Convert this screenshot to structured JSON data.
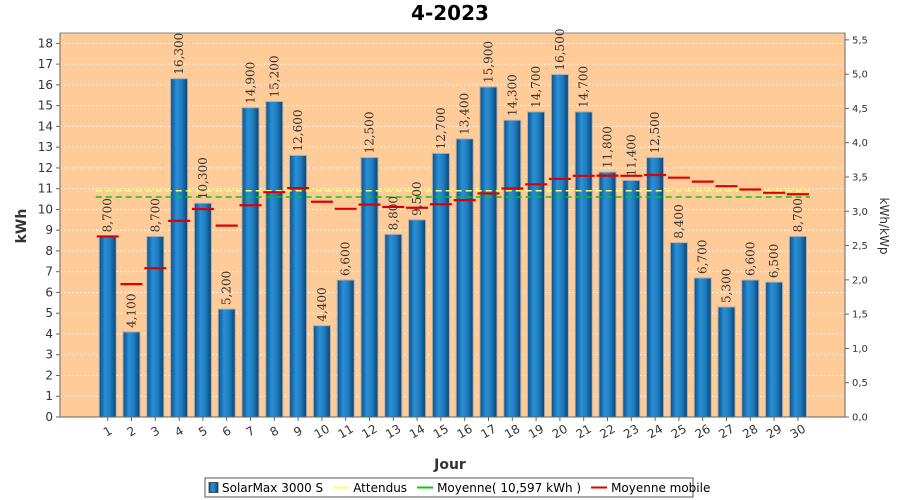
{
  "chart_data": {
    "type": "bar",
    "title": "4-2023",
    "xlabel": "Jour",
    "ylabel": "kWh",
    "y2label": "kWh/kWp",
    "ylim": [
      0,
      18.5
    ],
    "y2lim": [
      0,
      5.6
    ],
    "categories": [
      "1",
      "2",
      "3",
      "4",
      "5",
      "6",
      "7",
      "8",
      "9",
      "10",
      "11",
      "12",
      "13",
      "14",
      "15",
      "16",
      "17",
      "18",
      "19",
      "20",
      "21",
      "22",
      "23",
      "24",
      "25",
      "26",
      "27",
      "28",
      "29",
      "30"
    ],
    "series": [
      {
        "name": "SolarMax 3000 S",
        "kind": "bar",
        "color": "#1a6fb0",
        "values": [
          8.7,
          4.1,
          8.7,
          16.3,
          10.3,
          5.2,
          14.9,
          15.2,
          12.6,
          4.4,
          6.6,
          12.5,
          8.8,
          9.5,
          12.7,
          13.4,
          15.9,
          14.3,
          14.7,
          16.5,
          14.7,
          11.8,
          11.4,
          12.5,
          8.4,
          6.7,
          5.3,
          6.6,
          6.5,
          8.7
        ],
        "labels": [
          "8,700",
          "4,100",
          "8,700",
          "16,300",
          "10,300",
          "5,200",
          "14,900",
          "15,200",
          "12,600",
          "4,400",
          "6,600",
          "12,500",
          "8,800",
          "9,500",
          "12,700",
          "13,400",
          "15,900",
          "14,300",
          "14,700",
          "16,500",
          "14,700",
          "11,800",
          "11,400",
          "12,500",
          "8,400",
          "6,700",
          "5,300",
          "6,600",
          "6,500",
          "8,700"
        ]
      },
      {
        "name": "Attendus",
        "kind": "dashed-line",
        "color": "#ffff66",
        "value": 10.9
      },
      {
        "name": "Moyenne( 10,597 kWh )",
        "kind": "dashed-line",
        "color": "#00cc00",
        "value": 10.597
      },
      {
        "name": "Moyenne mobile",
        "kind": "segments",
        "color": "#dd0000",
        "values": [
          8.7,
          6.4,
          7.17,
          9.45,
          10.02,
          9.22,
          10.2,
          10.83,
          11.03,
          10.37,
          10.03,
          10.23,
          10.12,
          10.08,
          10.25,
          10.45,
          10.77,
          11.01,
          11.21,
          11.47,
          11.62,
          11.63,
          11.62,
          11.66,
          11.53,
          11.34,
          11.12,
          10.96,
          10.8,
          10.73
        ]
      }
    ],
    "y_ticks": [
      "0",
      "1",
      "2",
      "3",
      "4",
      "5",
      "6",
      "7",
      "8",
      "9",
      "10",
      "11",
      "12",
      "13",
      "14",
      "15",
      "16",
      "17",
      "18"
    ],
    "y2_ticks": [
      "0,0",
      "0,5",
      "1,0",
      "1,5",
      "2,0",
      "2,5",
      "3,0",
      "3,5",
      "4,0",
      "4,5",
      "5,0",
      "5,5"
    ],
    "grid": true,
    "legend_position": "bottom-center",
    "plot_background": "#ffcc99"
  }
}
